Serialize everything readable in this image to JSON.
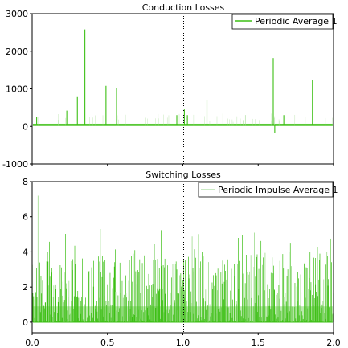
{
  "chart_data": [
    {
      "type": "line",
      "title": "Conduction Losses",
      "ylim": [
        -1000,
        3000
      ],
      "xlim": [
        0,
        2
      ],
      "yticks": [
        -1000,
        0,
        1000,
        2000,
        3000
      ],
      "yticklabels": [
        "-1000",
        "0",
        "1000",
        "2000",
        "3000"
      ],
      "xticks": [
        0,
        0.5,
        1.0,
        1.5,
        2.0
      ],
      "xticklabels": [],
      "grid": false,
      "legend": "top-right",
      "marker_x": 1.0,
      "baseline_band": [
        10,
        70
      ],
      "series": [
        {
          "name": "Periodic Average 1",
          "color": "#3cbf14",
          "spikes": [
            {
              "x": 0.03,
              "y": 260
            },
            {
              "x": 0.23,
              "y": 420
            },
            {
              "x": 0.3,
              "y": 780
            },
            {
              "x": 0.35,
              "y": 2580
            },
            {
              "x": 0.49,
              "y": 1080
            },
            {
              "x": 0.56,
              "y": 1020
            },
            {
              "x": 0.96,
              "y": 300
            },
            {
              "x": 1.01,
              "y": 450
            },
            {
              "x": 1.03,
              "y": 300
            },
            {
              "x": 1.16,
              "y": 700
            },
            {
              "x": 1.6,
              "y": 1820
            },
            {
              "x": 1.61,
              "y": -180
            },
            {
              "x": 1.67,
              "y": 300
            },
            {
              "x": 1.86,
              "y": 1240
            }
          ]
        }
      ]
    },
    {
      "type": "line",
      "title": "Switching Losses",
      "ylim": [
        -0.6,
        8
      ],
      "xlim": [
        0,
        2
      ],
      "yticks": [
        0,
        2,
        4,
        6,
        8
      ],
      "yticklabels": [
        "0",
        "2",
        "4",
        "6",
        "8"
      ],
      "xticks": [
        0,
        0.5,
        1.0,
        1.5,
        2.0
      ],
      "xticklabels": [
        "0.0",
        "0.5",
        "1.0",
        "1.5",
        "2.0"
      ],
      "grid": false,
      "legend": "top-right",
      "marker_x": 1.0,
      "series": [
        {
          "name": "Periodic Impulse Average 1",
          "color": "#3cbf14",
          "density_samples": 520,
          "typical_peak": 3.5,
          "max_peak": 7.2
        }
      ]
    }
  ]
}
